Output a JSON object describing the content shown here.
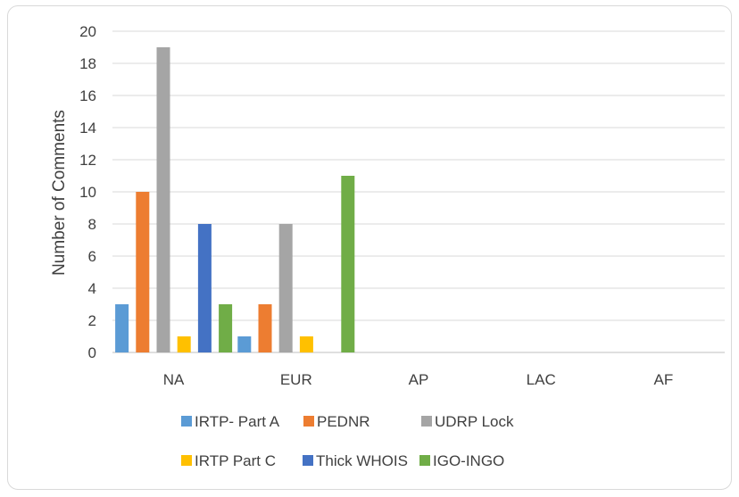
{
  "chart_data": {
    "type": "bar",
    "title": "",
    "xlabel": "",
    "ylabel": "Number of Comments",
    "ylim": [
      0,
      20
    ],
    "yticks": [
      0,
      2,
      4,
      6,
      8,
      10,
      12,
      14,
      16,
      18,
      20
    ],
    "categories": [
      "NA",
      "EUR",
      "AP",
      "LAC",
      "AF"
    ],
    "grid": true,
    "legend_position": "bottom",
    "series": [
      {
        "name": "IRTP- Part A",
        "color": "#5b9bd5",
        "values": [
          3,
          1,
          0,
          0,
          0
        ]
      },
      {
        "name": "PEDNR",
        "color": "#ed7d31",
        "values": [
          10,
          3,
          0,
          0,
          0
        ]
      },
      {
        "name": "UDRP Lock",
        "color": "#a5a5a5",
        "values": [
          19,
          8,
          0,
          0,
          0
        ]
      },
      {
        "name": "IRTP Part C",
        "color": "#ffc000",
        "values": [
          1,
          1,
          0,
          0,
          0
        ]
      },
      {
        "name": "Thick WHOIS",
        "color": "#4472c4",
        "values": [
          8,
          0,
          0,
          0,
          0
        ]
      },
      {
        "name": "IGO-INGO",
        "color": "#70ad47",
        "values": [
          3,
          11,
          0,
          0,
          0
        ]
      }
    ]
  }
}
